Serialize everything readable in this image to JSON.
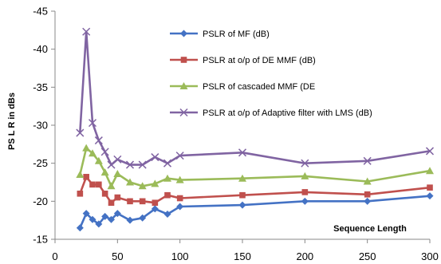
{
  "chart_data": {
    "type": "line",
    "title": "",
    "xlabel": "Sequence Length",
    "ylabel": "PS L R in dBs",
    "xlim": [
      0,
      300
    ],
    "ylim": [
      -45,
      -15
    ],
    "ylim_note": "reversed",
    "grid": false,
    "legend_position": "top-right",
    "x_ticks": [
      0,
      50,
      100,
      150,
      200,
      250,
      300
    ],
    "y_ticks": [
      -45,
      -40,
      -35,
      -30,
      -25,
      -20,
      -15
    ],
    "series": [
      {
        "name": "PSLR of MF (dB)",
        "color": "#4472C4",
        "marker": "diamond",
        "x": [
          20,
          25,
          30,
          35,
          40,
          45,
          50,
          60,
          70,
          80,
          90,
          100,
          150,
          200,
          250,
          300
        ],
        "y": [
          -16.5,
          -18.4,
          -17.6,
          -17.0,
          -18.0,
          -17.6,
          -18.4,
          -17.5,
          -17.8,
          -19.0,
          -18.3,
          -19.3,
          -19.5,
          -20.0,
          -20.0,
          -20.7
        ]
      },
      {
        "name": "PSLR at o/p of DE MMF (dB)",
        "color": "#C0504D",
        "marker": "square",
        "x": [
          20,
          25,
          30,
          35,
          40,
          45,
          50,
          60,
          70,
          80,
          90,
          100,
          150,
          200,
          250,
          300
        ],
        "y": [
          -21.0,
          -23.2,
          -22.2,
          -22.2,
          -21.0,
          -19.8,
          -20.5,
          -20.0,
          -20.0,
          -19.8,
          -20.8,
          -20.4,
          -20.8,
          -21.2,
          -20.9,
          -21.8
        ]
      },
      {
        "name": "PSLR of cascaded MMF (DE",
        "color": "#9BBB59",
        "marker": "triangle",
        "x": [
          20,
          25,
          30,
          35,
          40,
          45,
          50,
          60,
          70,
          80,
          90,
          100,
          150,
          200,
          250,
          300
        ],
        "y": [
          -23.5,
          -27.0,
          -26.3,
          -25.3,
          -23.8,
          -22.0,
          -23.6,
          -22.5,
          -22.0,
          -22.3,
          -23.0,
          -22.8,
          -23.0,
          -23.3,
          -22.6,
          -24.0
        ]
      },
      {
        "name": "PSLR at o/p of Adaptive filter with LMS (dB)",
        "color": "#8064A2",
        "marker": "x",
        "x": [
          20,
          25,
          30,
          35,
          40,
          45,
          50,
          60,
          70,
          80,
          90,
          100,
          150,
          200,
          250,
          300
        ],
        "y": [
          -29.0,
          -42.3,
          -30.3,
          -28.0,
          -26.5,
          -24.8,
          -25.5,
          -24.8,
          -24.8,
          -25.8,
          -25.0,
          -26.0,
          -26.4,
          -25.0,
          -25.3,
          -26.6
        ]
      }
    ]
  }
}
